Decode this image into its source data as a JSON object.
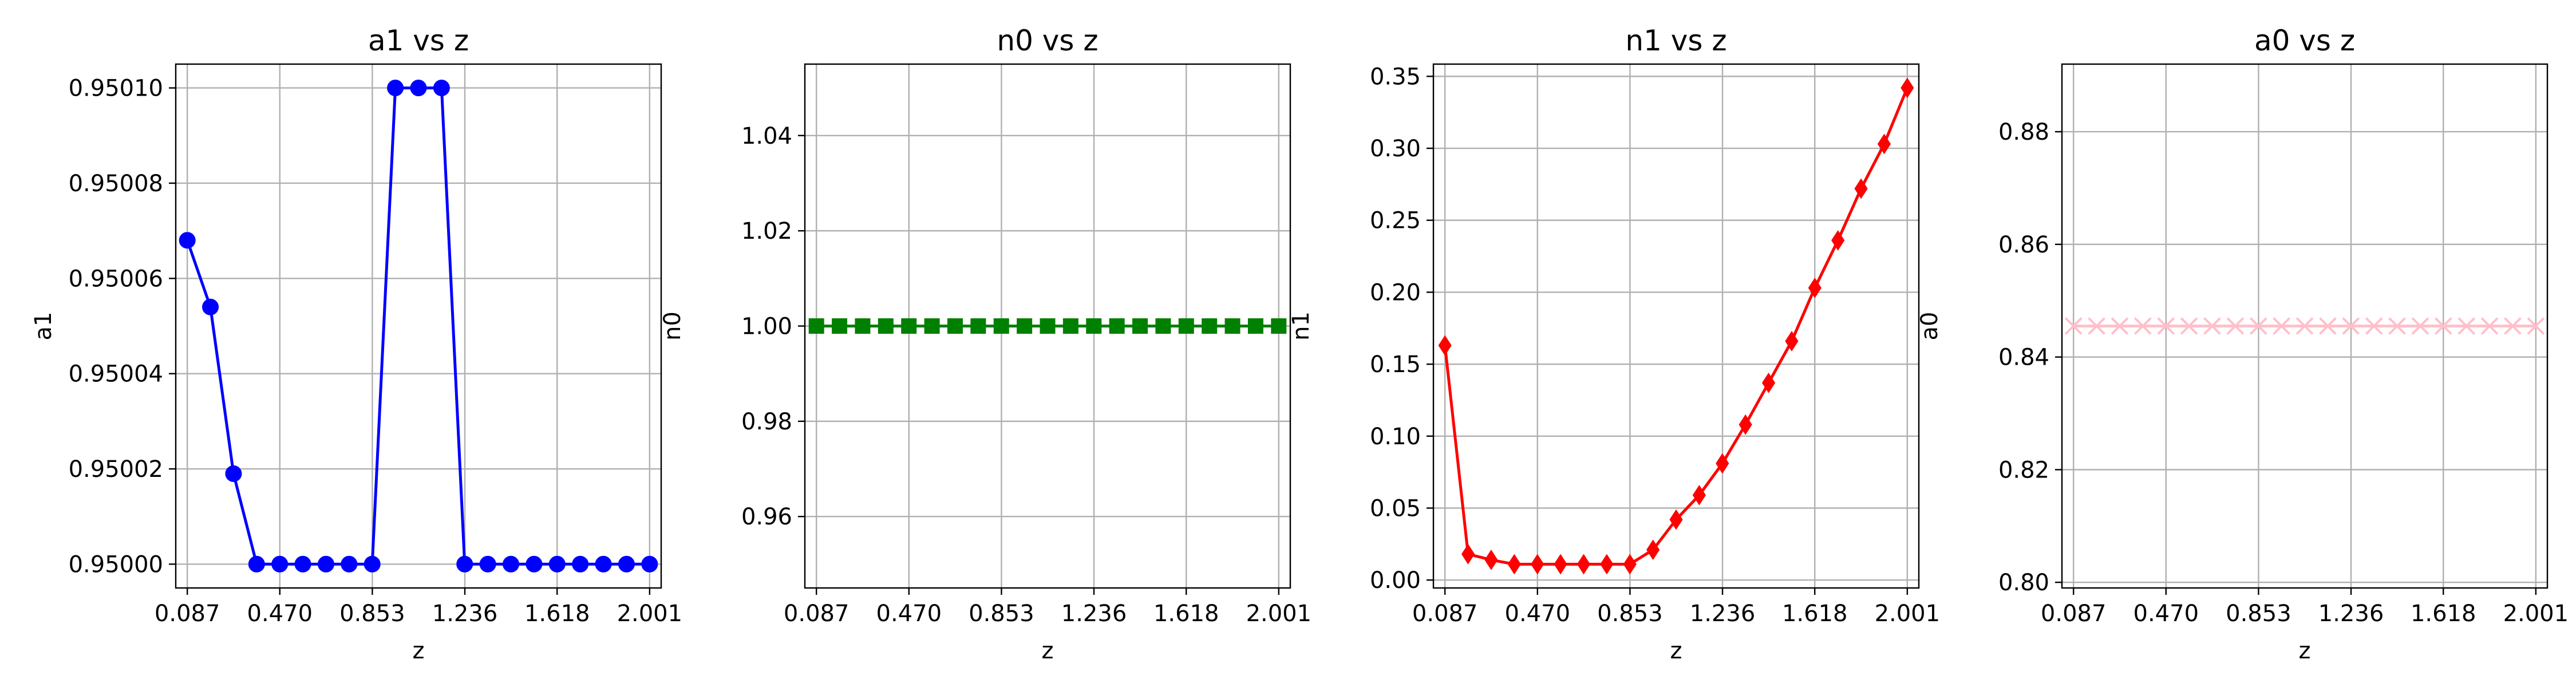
{
  "chart_data": [
    {
      "type": "line",
      "title": "a1 vs z",
      "xlabel": "z",
      "ylabel": "a1",
      "color": "#0000ff",
      "marker": "circle",
      "xlim": [
        0.0392,
        2.0488
      ],
      "ylim": [
        0.949995,
        0.950105
      ],
      "xticks": [
        0.087,
        0.47,
        0.853,
        1.236,
        1.618,
        2.001
      ],
      "xtick_labels": [
        "0.087",
        "0.470",
        "0.853",
        "1.236",
        "1.618",
        "2.001"
      ],
      "yticks": [
        0.95,
        0.95002,
        0.95004,
        0.95006,
        0.95008,
        0.9501
      ],
      "ytick_labels": [
        "0.95000",
        "0.95002",
        "0.95004",
        "0.95006",
        "0.95008",
        "0.95010"
      ],
      "grid": true,
      "x": [
        0.087,
        0.1827,
        0.2784,
        0.3741,
        0.4698,
        0.5655,
        0.6612,
        0.7569,
        0.8526,
        0.9483,
        1.044,
        1.1397,
        1.2354,
        1.3311,
        1.4268,
        1.5225,
        1.6182,
        1.7139,
        1.8096,
        1.9053,
        2.001
      ],
      "y": [
        0.950068,
        0.950054,
        0.950019,
        0.95,
        0.95,
        0.95,
        0.95,
        0.95,
        0.95,
        0.9501,
        0.9501,
        0.9501,
        0.95,
        0.95,
        0.95,
        0.95,
        0.95,
        0.95,
        0.95,
        0.95,
        0.95
      ]
    },
    {
      "type": "line",
      "title": "n0 vs z",
      "xlabel": "z",
      "ylabel": "n0",
      "color": "#008000",
      "marker": "square",
      "xlim": [
        0.0392,
        2.0488
      ],
      "ylim": [
        0.945,
        1.055
      ],
      "xticks": [
        0.087,
        0.47,
        0.853,
        1.236,
        1.618,
        2.001
      ],
      "xtick_labels": [
        "0.087",
        "0.470",
        "0.853",
        "1.236",
        "1.618",
        "2.001"
      ],
      "yticks": [
        0.96,
        0.98,
        1.0,
        1.02,
        1.04
      ],
      "ytick_labels": [
        "0.96",
        "0.98",
        "1.00",
        "1.02",
        "1.04"
      ],
      "grid": true,
      "x": [
        0.087,
        0.1827,
        0.2784,
        0.3741,
        0.4698,
        0.5655,
        0.6612,
        0.7569,
        0.8526,
        0.9483,
        1.044,
        1.1397,
        1.2354,
        1.3311,
        1.4268,
        1.5225,
        1.6182,
        1.7139,
        1.8096,
        1.9053,
        2.001
      ],
      "y": [
        1.0,
        1.0,
        1.0,
        1.0,
        1.0,
        1.0,
        1.0,
        1.0,
        1.0,
        1.0,
        1.0,
        1.0,
        1.0,
        1.0,
        1.0,
        1.0,
        1.0,
        1.0,
        1.0,
        1.0,
        1.0
      ]
    },
    {
      "type": "line",
      "title": "n1 vs z",
      "xlabel": "z",
      "ylabel": "n1",
      "color": "#ff0000",
      "marker": "diamond",
      "xlim": [
        0.0392,
        2.0488
      ],
      "ylim": [
        -0.0055,
        0.3585
      ],
      "xticks": [
        0.087,
        0.47,
        0.853,
        1.236,
        1.618,
        2.001
      ],
      "xtick_labels": [
        "0.087",
        "0.470",
        "0.853",
        "1.236",
        "1.618",
        "2.001"
      ],
      "yticks": [
        0.0,
        0.05,
        0.1,
        0.15,
        0.2,
        0.25,
        0.3,
        0.35
      ],
      "ytick_labels": [
        "0.00",
        "0.05",
        "0.10",
        "0.15",
        "0.20",
        "0.25",
        "0.30",
        "0.35"
      ],
      "grid": true,
      "x": [
        0.087,
        0.1827,
        0.2784,
        0.3741,
        0.4698,
        0.5655,
        0.6612,
        0.7569,
        0.8526,
        0.9483,
        1.044,
        1.1397,
        1.2354,
        1.3311,
        1.4268,
        1.5225,
        1.6182,
        1.7139,
        1.8096,
        1.9053,
        2.001
      ],
      "y": [
        0.163,
        0.018,
        0.014,
        0.011,
        0.011,
        0.011,
        0.011,
        0.011,
        0.011,
        0.021,
        0.042,
        0.059,
        0.081,
        0.108,
        0.137,
        0.166,
        0.203,
        0.236,
        0.272,
        0.303,
        0.342
      ]
    },
    {
      "type": "line",
      "title": "a0 vs z",
      "xlabel": "z",
      "ylabel": "a0",
      "color": "#ffc0cb",
      "marker": "x",
      "xlim": [
        0.0392,
        2.0488
      ],
      "ylim": [
        0.799,
        0.892
      ],
      "xticks": [
        0.087,
        0.47,
        0.853,
        1.236,
        1.618,
        2.001
      ],
      "xtick_labels": [
        "0.087",
        "0.470",
        "0.853",
        "1.236",
        "1.618",
        "2.001"
      ],
      "yticks": [
        0.8,
        0.82,
        0.84,
        0.86,
        0.88
      ],
      "ytick_labels": [
        "0.80",
        "0.82",
        "0.84",
        "0.86",
        "0.88"
      ],
      "grid": true,
      "x": [
        0.087,
        0.1827,
        0.2784,
        0.3741,
        0.4698,
        0.5655,
        0.6612,
        0.7569,
        0.8526,
        0.9483,
        1.044,
        1.1397,
        1.2354,
        1.3311,
        1.4268,
        1.5225,
        1.6182,
        1.7139,
        1.8096,
        1.9053,
        2.001
      ],
      "y": [
        0.8455,
        0.8455,
        0.8455,
        0.8455,
        0.8455,
        0.8455,
        0.8455,
        0.8455,
        0.8455,
        0.8455,
        0.8455,
        0.8455,
        0.8455,
        0.8455,
        0.8455,
        0.8455,
        0.8455,
        0.8455,
        0.8455,
        0.8455,
        0.8455
      ]
    }
  ]
}
